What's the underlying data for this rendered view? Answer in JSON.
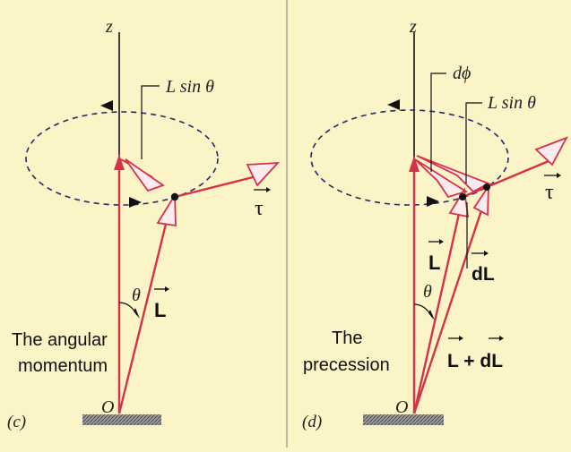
{
  "colors": {
    "background": "#fbf4c6",
    "divider": "#bdb9a0",
    "vector_red": "#d6314b",
    "axis_black": "#111111",
    "dashed_path": "#24276b",
    "arrow_head": "#111111",
    "ground_hatch": "#8a8a8a"
  },
  "panel_c": {
    "panel_label": "(c)",
    "z_label": "z",
    "origin_label": "O",
    "lsin_label": "L sin θ",
    "theta_label": "θ",
    "L_vector_label": "L",
    "tau_label": "τ",
    "caption_line1": "The angular",
    "caption_line2": "momentum"
  },
  "panel_d": {
    "panel_label": "(d)",
    "z_label": "z",
    "origin_label": "O",
    "dphi_label": "dϕ",
    "lsin_label": "L sin θ",
    "theta_label": "θ",
    "L_vector_label": "L",
    "dL_label": "dL",
    "sum_label": "L + dL",
    "tau_label": "τ",
    "caption_line1": "The",
    "caption_line2": "precession"
  }
}
